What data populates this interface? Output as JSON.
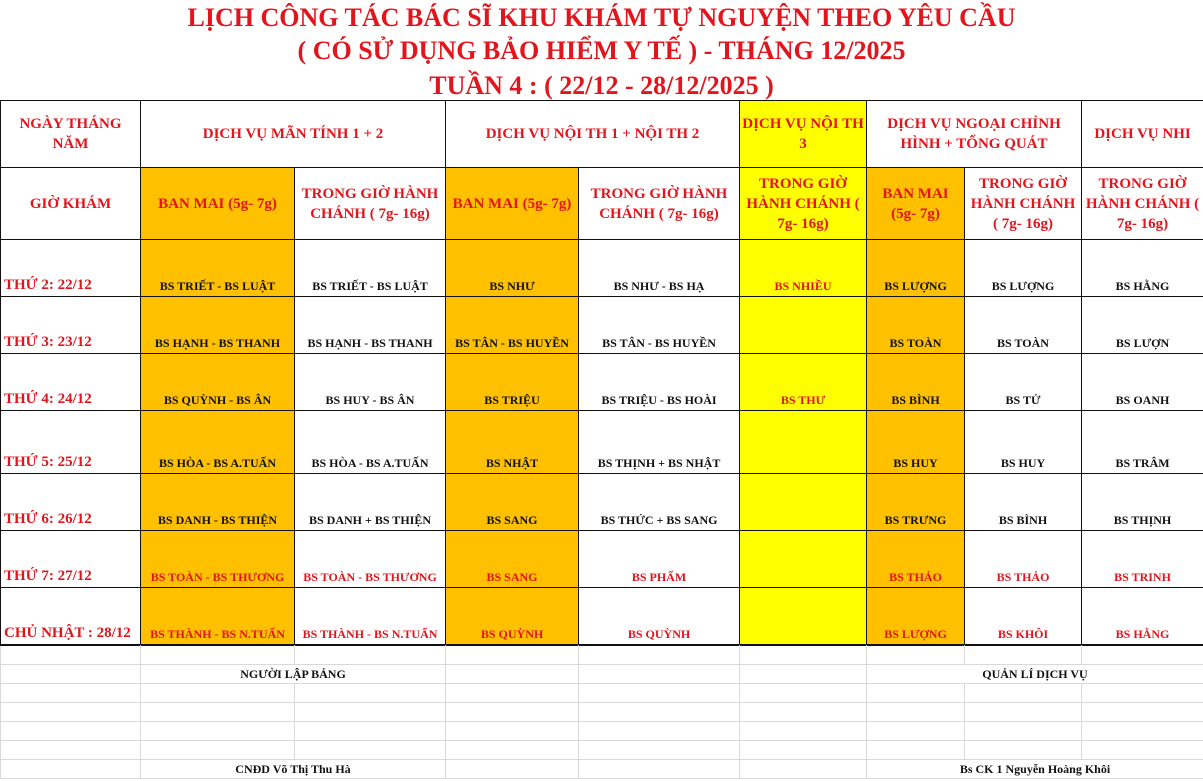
{
  "title": {
    "line1": "LỊCH CÔNG TÁC BÁC SĨ KHU KHÁM TỰ NGUYỆN THEO YÊU CẦU",
    "line2": "( CÓ SỬ DỤNG BẢO HIỂM Y TẾ ) - THÁNG 12/2025",
    "line3": "TUẦN 4 : ( 22/12 - 28/12/2025 )"
  },
  "colors": {
    "red_text": "#e3141b",
    "ban_mai_fill": "#ffc000",
    "noi_th3_fill": "#ffff00"
  },
  "header": {
    "date_label": "NGÀY THÁNG NĂM",
    "time_label": "GIỜ KHÁM",
    "services": [
      "DỊCH VỤ MÃN TÍNH 1 + 2",
      "DỊCH VỤ NỘI TH 1 + NỘI TH 2",
      "DỊCH VỤ NỘI TH 3",
      "DỊCH VỤ NGOẠI CHỈNH HÌNH + TỔNG QUÁT",
      "DỊCH VỤ NHI"
    ],
    "shifts": [
      "BAN MAI (5g- 7g)",
      "TRONG GIỜ HÀNH CHÁNH ( 7g- 16g)",
      "BAN MAI (5g- 7g)",
      "TRONG GIỜ HÀNH CHÁNH ( 7g- 16g)",
      "TRONG GIỜ HÀNH CHÁNH ( 7g- 16g)",
      "BAN MAI (5g- 7g)",
      "TRONG GIỜ HÀNH CHÁNH ( 7g- 16g)",
      "TRONG GIỜ HÀNH CHÁNH ( 7g- 16g)"
    ]
  },
  "rows": [
    {
      "day": "THỨ 2: 22/12",
      "cells": [
        "BS TRIẾT - BS LUẬT",
        "BS TRIẾT - BS LUẬT",
        "BS NHƯ",
        "BS NHƯ - BS HẠ",
        "BS NHIỀU",
        "BS LƯỢNG",
        "BS LƯỢNG",
        "BS HẰNG"
      ]
    },
    {
      "day": "THỨ 3: 23/12",
      "cells": [
        "BS HẠNH - BS THANH",
        "BS HẠNH - BS THANH",
        "BS TÂN - BS HUYỀN",
        "BS TÂN - BS HUYỀN",
        "",
        "BS TOÀN",
        "BS TOÀN",
        "BS LƯỢN"
      ]
    },
    {
      "day": "THỨ 4: 24/12",
      "cells": [
        "BS QUỲNH - BS ÂN",
        "BS  HUY  - BS ÂN",
        "BS TRIỆU",
        "BS TRIỆU - BS HOÀI",
        "BS THƯ",
        "BS BÌNH",
        "BS TỬ",
        "BS OANH"
      ]
    },
    {
      "day": "THỨ 5: 25/12",
      "cells": [
        "BS HÒA - BS A.TUẤN",
        "BS HÒA - BS A.TUẤN",
        "BS NHẬT",
        "BS THỊNH + BS NHẬT",
        "",
        "BS HUY",
        "BS HUY",
        "BS TRÂM"
      ]
    },
    {
      "day": "THỨ 6: 26/12",
      "cells": [
        "BS DANH - BS THIỆN",
        "BS DANH + BS THIỆN",
        "BS SANG",
        "BS THỨC + BS SANG",
        "",
        "BS TRƯNG",
        "BS BÌNH",
        "BS THỊNH"
      ]
    },
    {
      "day": "THỨ 7: 27/12",
      "cells": [
        "BS TOÀN - BS THƯƠNG",
        "BS TOÀN - BS THƯƠNG",
        "BS SANG",
        "BS PHẨM",
        "",
        "BS THẢO",
        "BS THẢO",
        "BS TRINH"
      ]
    },
    {
      "day": "CHỦ NHẬT : 28/12",
      "cells": [
        "BS THÀNH  - BS N.TUẤN",
        "BS THÀNH  - BS N.TUẤN",
        "BS QUỲNH",
        "BS QUỲNH",
        "",
        "BS LƯỢNG",
        "BS KHÔI",
        "BS HẰNG"
      ]
    }
  ],
  "footer": {
    "prepared_by_label": "NGƯỜI LẬP BẢNG",
    "manager_label": "QUẢN LÍ DỊCH VỤ",
    "prepared_by_name": "CNĐD Võ Thị Thu Hà",
    "manager_name": "Bs CK 1 Nguyễn Hoàng Khôi"
  }
}
